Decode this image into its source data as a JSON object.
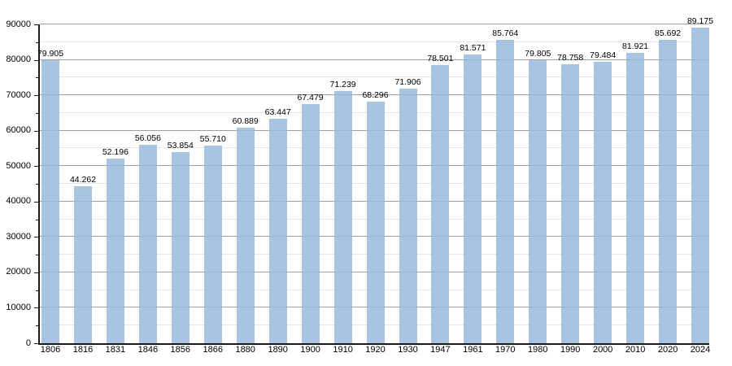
{
  "chart_data": {
    "type": "bar",
    "title": "",
    "xlabel": "",
    "ylabel": "",
    "categories": [
      "1806",
      "1816",
      "1831",
      "1846",
      "1856",
      "1866",
      "1880",
      "1890",
      "1900",
      "1910",
      "1920",
      "1930",
      "1947",
      "1961",
      "1970",
      "1980",
      "1990",
      "2000",
      "2010",
      "2020",
      "2024"
    ],
    "values": [
      79905,
      44262,
      52196,
      56056,
      53854,
      55710,
      60889,
      63447,
      67479,
      71239,
      68296,
      71906,
      78501,
      81571,
      85764,
      79805,
      78758,
      79484,
      81921,
      85692,
      89175
    ],
    "value_labels": [
      "79.905",
      "44.262",
      "52.196",
      "56.056",
      "53.854",
      "55.710",
      "60.889",
      "63.447",
      "67.479",
      "71.239",
      "68.296",
      "71.906",
      "78.501",
      "81.571",
      "85.764",
      "79.805",
      "78.758",
      "79.484",
      "81.921",
      "85.692",
      "89.175"
    ],
    "y_tick_labels": [
      "0",
      "10000",
      "20000",
      "30000",
      "40000",
      "50000",
      "60000",
      "70000",
      "80000",
      "90000"
    ],
    "ylim": [
      0,
      90000
    ],
    "y_major_step": 10000,
    "y_minor_step": 5000,
    "grid": true,
    "legend": "none",
    "bar_color": "#a9c6e4",
    "bar_fill_rgba": "rgba(152,187,222,0.85)",
    "major_grid_color": "#9e9e9e",
    "minor_grid_color": "#e6e6e6",
    "axis_color": "#1a1a1a",
    "text_color": "#000000"
  }
}
